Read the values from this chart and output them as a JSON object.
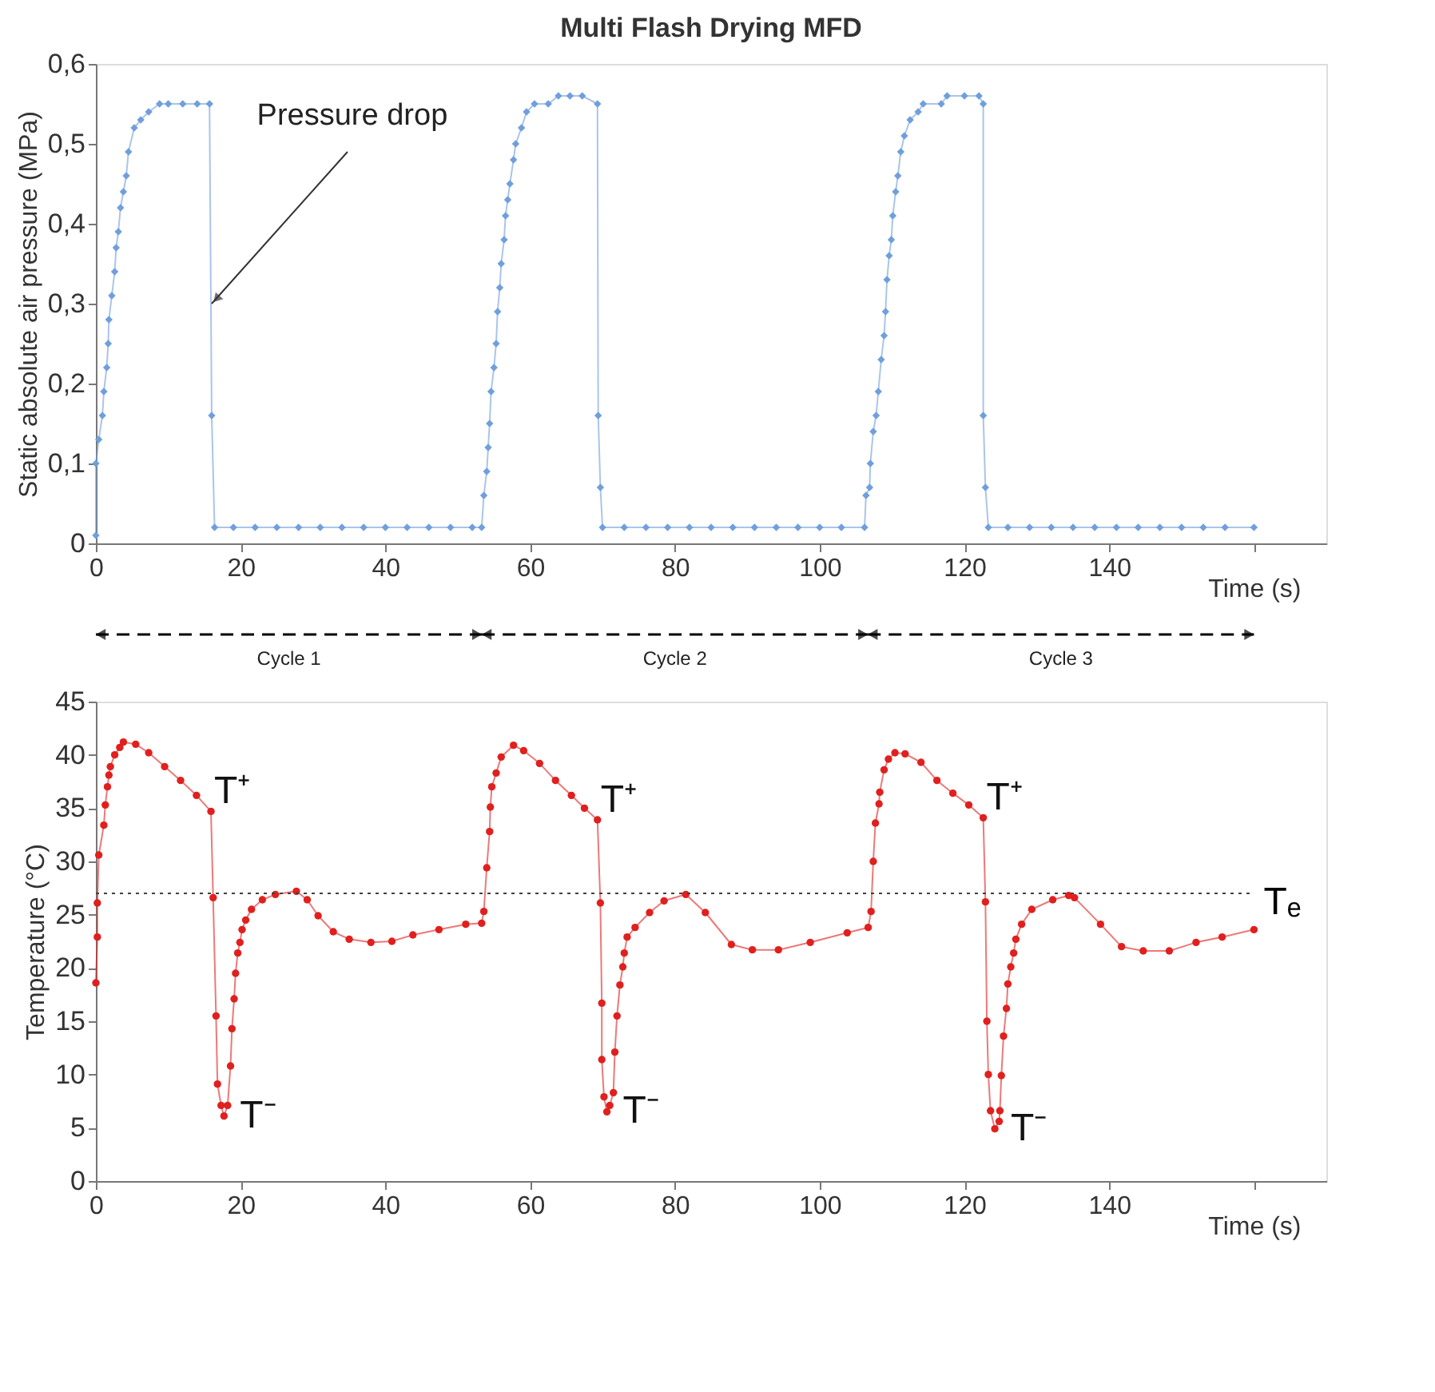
{
  "chart_data": [
    {
      "type": "line",
      "title": "Multi Flash Drying MFD",
      "ylabel": "Static absolute air pressure (MPa)",
      "xlabel": "Time (s)",
      "marker": "diamond",
      "grid": false,
      "x": [
        0,
        0,
        0.4,
        0.9,
        1.1,
        1.5,
        1.7,
        1.8,
        2.2,
        2.6,
        2.8,
        3.1,
        3.4,
        3.8,
        4.2,
        4.5,
        5.3,
        6.2,
        7.3,
        8.8,
        10,
        12,
        14,
        15.7,
        16,
        16.4,
        19,
        22,
        25,
        28,
        31,
        34,
        37,
        40,
        43,
        46,
        49,
        52,
        53.3,
        53.6,
        54,
        54.2,
        54.4,
        54.6,
        55,
        55.3,
        55.5,
        55.8,
        56,
        56.4,
        56.6,
        56.9,
        57.2,
        57.7,
        58,
        58.8,
        59.5,
        60.6,
        62.5,
        63.9,
        65.5,
        67.2,
        69.3,
        69.4,
        69.7,
        70,
        73,
        76,
        79,
        82,
        85,
        88,
        91,
        94,
        97,
        100,
        103,
        106.2,
        106.4,
        106.9,
        107,
        107.4,
        107.8,
        108.1,
        108.5,
        108.9,
        109.1,
        109.3,
        109.6,
        109.9,
        110.1,
        110.5,
        110.8,
        111.2,
        111.7,
        112.5,
        113.6,
        114.3,
        116.8,
        117.6,
        120,
        122,
        122.6,
        122.6,
        122.9,
        123.3,
        126,
        129,
        132,
        135,
        138,
        141,
        144,
        147,
        150,
        153,
        156,
        160
      ],
      "series": [
        {
          "color": "#6f9fdc",
          "values": [
            0.01,
            0.1,
            0.13,
            0.16,
            0.19,
            0.22,
            0.25,
            0.28,
            0.31,
            0.34,
            0.37,
            0.39,
            0.42,
            0.44,
            0.46,
            0.49,
            0.52,
            0.53,
            0.54,
            0.55,
            0.55,
            0.55,
            0.55,
            0.55,
            0.16,
            0.02,
            0.02,
            0.02,
            0.02,
            0.02,
            0.02,
            0.02,
            0.02,
            0.02,
            0.02,
            0.02,
            0.02,
            0.02,
            0.02,
            0.06,
            0.09,
            0.12,
            0.15,
            0.19,
            0.22,
            0.25,
            0.29,
            0.32,
            0.35,
            0.38,
            0.41,
            0.43,
            0.45,
            0.48,
            0.5,
            0.52,
            0.54,
            0.55,
            0.55,
            0.56,
            0.56,
            0.56,
            0.55,
            0.16,
            0.07,
            0.02,
            0.02,
            0.02,
            0.02,
            0.02,
            0.02,
            0.02,
            0.02,
            0.02,
            0.02,
            0.02,
            0.02,
            0.02,
            0.06,
            0.07,
            0.1,
            0.14,
            0.16,
            0.19,
            0.23,
            0.26,
            0.29,
            0.33,
            0.36,
            0.38,
            0.41,
            0.44,
            0.46,
            0.49,
            0.51,
            0.53,
            0.54,
            0.55,
            0.55,
            0.56,
            0.56,
            0.56,
            0.55,
            0.16,
            0.07,
            0.02,
            0.02,
            0.02,
            0.02,
            0.02,
            0.02,
            0.02,
            0.02,
            0.02,
            0.02,
            0.02,
            0.02,
            0.02
          ]
        }
      ],
      "xlim": [
        0,
        170
      ],
      "xticks": [
        0,
        20,
        40,
        60,
        80,
        100,
        120,
        140,
        {
          "value": 160,
          "label": null
        }
      ],
      "ylim": [
        0,
        0.6
      ],
      "yticks": [
        {
          "value": 0,
          "label": "0"
        },
        {
          "value": 0.1,
          "label": "0,1"
        },
        {
          "value": 0.2,
          "label": "0,2"
        },
        {
          "value": 0.3,
          "label": "0,3"
        },
        {
          "value": 0.4,
          "label": "0,4"
        },
        {
          "value": 0.5,
          "label": "0,5"
        },
        {
          "value": 0.6,
          "label": "0,6"
        }
      ],
      "annotations": [
        {
          "text": "Pressure drop",
          "x": 16,
          "y": 0.3
        }
      ]
    },
    {
      "type": "line",
      "ylabel": "Temperature (°C)",
      "xlabel": "Time (s)",
      "marker": "circle",
      "grid": false,
      "x": [
        0,
        0.2,
        0.2,
        0.4,
        1.1,
        1.3,
        1.6,
        1.8,
        2,
        2.6,
        3.3,
        3.8,
        5.5,
        7.3,
        9.5,
        11.7,
        13.9,
        15.9,
        16.2,
        16.6,
        16.8,
        17.3,
        17.7,
        18.2,
        18.6,
        18.8,
        19.1,
        19.3,
        19.6,
        19.9,
        20.2,
        20.7,
        21.5,
        23,
        24.8,
        27.7,
        29.2,
        30.7,
        32.8,
        35,
        38,
        40.9,
        43.8,
        47.4,
        51.1,
        53.3,
        53.6,
        54,
        54.4,
        54.5,
        54.7,
        55.3,
        56,
        57.7,
        59.1,
        61.3,
        63.5,
        65.7,
        67.5,
        69.3,
        69.7,
        69.9,
        69.9,
        70.2,
        70.6,
        71,
        71.5,
        71.7,
        72,
        72.4,
        72.8,
        73,
        73.4,
        74.5,
        76.5,
        78.5,
        81.5,
        84.2,
        87.8,
        90.7,
        94.3,
        98.7,
        103.8,
        106.7,
        107.1,
        107.4,
        107.7,
        108.2,
        108.3,
        108.9,
        109.5,
        110.4,
        111.8,
        114,
        116.2,
        118.4,
        120.6,
        122.6,
        122.9,
        123.1,
        123.3,
        123.6,
        124.2,
        124.8,
        124.9,
        125.1,
        125.4,
        125.8,
        126,
        126.4,
        126.8,
        127.1,
        127.9,
        129.3,
        132.2,
        134.4,
        135.2,
        138.8,
        141.7,
        144.7,
        148.3,
        152,
        155.6,
        160
      ],
      "series": [
        {
          "color": "#e0201e",
          "values": [
            18.6,
            22.9,
            26.1,
            30.6,
            33.4,
            35.3,
            37,
            38.1,
            38.9,
            40,
            40.7,
            41.2,
            41,
            40.2,
            38.9,
            37.6,
            36.2,
            34.7,
            26.6,
            15.5,
            9.1,
            7.1,
            6.1,
            7.1,
            10.8,
            14.3,
            17.1,
            19.5,
            21.4,
            22.4,
            23.6,
            24.5,
            25.5,
            26.4,
            26.9,
            27.2,
            26.4,
            24.9,
            23.4,
            22.7,
            22.4,
            22.5,
            23.1,
            23.6,
            24.1,
            24.2,
            25.3,
            29.4,
            32.8,
            35.1,
            37,
            38.3,
            39.8,
            40.9,
            40.4,
            39.2,
            37.6,
            36.2,
            35,
            33.9,
            26.1,
            16.7,
            11.4,
            7.9,
            6.5,
            7.1,
            8.3,
            12.1,
            15.5,
            18.4,
            20.1,
            21.4,
            22.9,
            23.8,
            25.2,
            26.3,
            26.9,
            25.2,
            22.2,
            21.7,
            21.7,
            22.4,
            23.3,
            23.8,
            25.3,
            30,
            33.6,
            35.4,
            36.5,
            38.6,
            39.6,
            40.2,
            40.1,
            39.3,
            37.6,
            36.4,
            35.3,
            34.1,
            26.2,
            15,
            10,
            6.6,
            4.9,
            5.6,
            6.6,
            9.9,
            13.6,
            16.2,
            18.5,
            20.1,
            21.4,
            22.7,
            24.1,
            25.5,
            26.4,
            26.8,
            26.6,
            24.1,
            22,
            21.6,
            21.6,
            22.4,
            22.9,
            23.6
          ]
        }
      ],
      "xlim": [
        0,
        170
      ],
      "xticks": [
        0,
        20,
        40,
        60,
        80,
        100,
        120,
        140,
        {
          "value": 160,
          "label": null
        }
      ],
      "ylim": [
        0,
        45
      ],
      "yticks": [
        0,
        5,
        10,
        15,
        20,
        25,
        30,
        35,
        40,
        45
      ],
      "ref_lines": [
        {
          "axis": "y",
          "value": 27,
          "label": "Tₑ",
          "color": "#404040",
          "line_style": "dotted"
        }
      ],
      "annotations": [
        "Cycle 1",
        "Cycle 2",
        "Cycle 3",
        {
          "text": "T⁺",
          "x": 15.9,
          "y": 34.7
        },
        {
          "text": "T⁺",
          "x": 69.3,
          "y": 33.9
        },
        {
          "text": "T⁺",
          "x": 122.6,
          "y": 34.1
        },
        {
          "text": "T⁻",
          "x": 17.7,
          "y": 6.1
        },
        {
          "text": "T⁻",
          "x": 70.6,
          "y": 6.5
        },
        {
          "text": "T⁻",
          "x": 124.2,
          "y": 4.9
        }
      ]
    }
  ]
}
